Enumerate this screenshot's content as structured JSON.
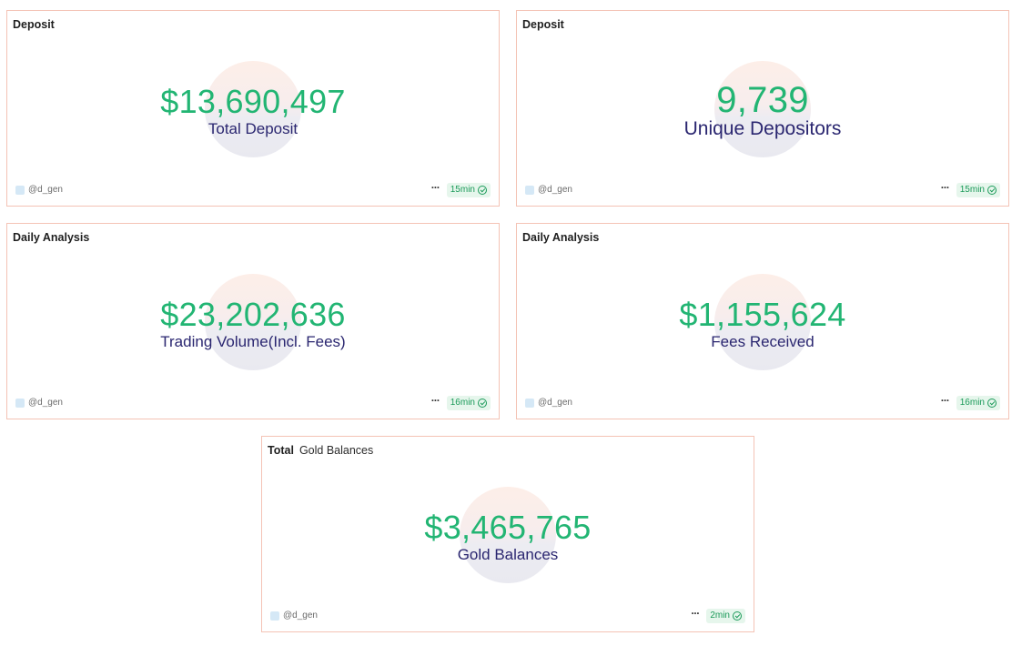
{
  "cards": [
    {
      "title": "Deposit",
      "subtitle": "",
      "value": "$13,690,497",
      "label": "Total Deposit",
      "author": "@d_gen",
      "refresh": "15min"
    },
    {
      "title": "Deposit",
      "subtitle": "",
      "value": "9,739",
      "label": "Unique Depositors",
      "author": "@d_gen",
      "refresh": "15min"
    },
    {
      "title": "Daily Analysis",
      "subtitle": "",
      "value": "$23,202,636",
      "label": "Trading Volume(Incl. Fees)",
      "author": "@d_gen",
      "refresh": "16min"
    },
    {
      "title": "Daily Analysis",
      "subtitle": "",
      "value": "$1,155,624",
      "label": "Fees Received",
      "author": "@d_gen",
      "refresh": "16min"
    },
    {
      "title": "Total",
      "subtitle": "Gold Balances",
      "value": "$3,465,765",
      "label": "Gold Balances",
      "author": "@d_gen",
      "refresh": "2min"
    }
  ],
  "icons": {
    "more": "more-horizontal-icon",
    "check": "check-circle-icon",
    "avatar": "author-avatar-icon"
  },
  "colors": {
    "value": "#22b573",
    "label": "#2a2670",
    "border": "#f4c3b5",
    "badge_bg": "#e6f6ec",
    "badge_text": "#1b9a59"
  }
}
